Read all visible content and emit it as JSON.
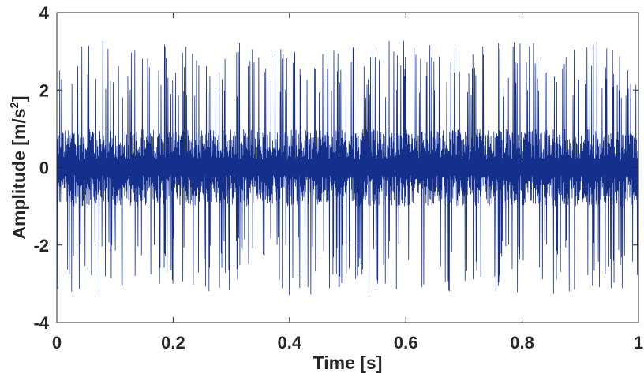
{
  "chart_data": {
    "type": "line",
    "title": "",
    "xlabel": "Time [s]",
    "ylabel_main": "Amplitude [m/s",
    "ylabel_sup": "2",
    "ylabel_end": "]",
    "xlim": [
      0,
      1
    ],
    "ylim": [
      -4,
      4
    ],
    "x_ticks": [
      0,
      0.2,
      0.4,
      0.6,
      0.8,
      1
    ],
    "x_tick_labels": [
      "0",
      "0.2",
      "0.4",
      "0.6",
      "0.8",
      "1"
    ],
    "y_ticks": [
      -4,
      -2,
      0,
      2,
      4
    ],
    "y_tick_labels": [
      "-4",
      "-2",
      "0",
      "2",
      "4"
    ],
    "grid": false,
    "series": [
      {
        "color": "#15308c",
        "signal": {
          "description_range": "vibration signal, dense band about ±0.8 with impulsive peaks up to about ±3.3",
          "x_start": 0,
          "x_end": 1,
          "core_band": 0.8,
          "peak_max": 3.3,
          "peak_min": -3.3,
          "samples": 2000
        }
      }
    ],
    "colors": {
      "axis": "#262626",
      "line": "#15308c"
    }
  }
}
